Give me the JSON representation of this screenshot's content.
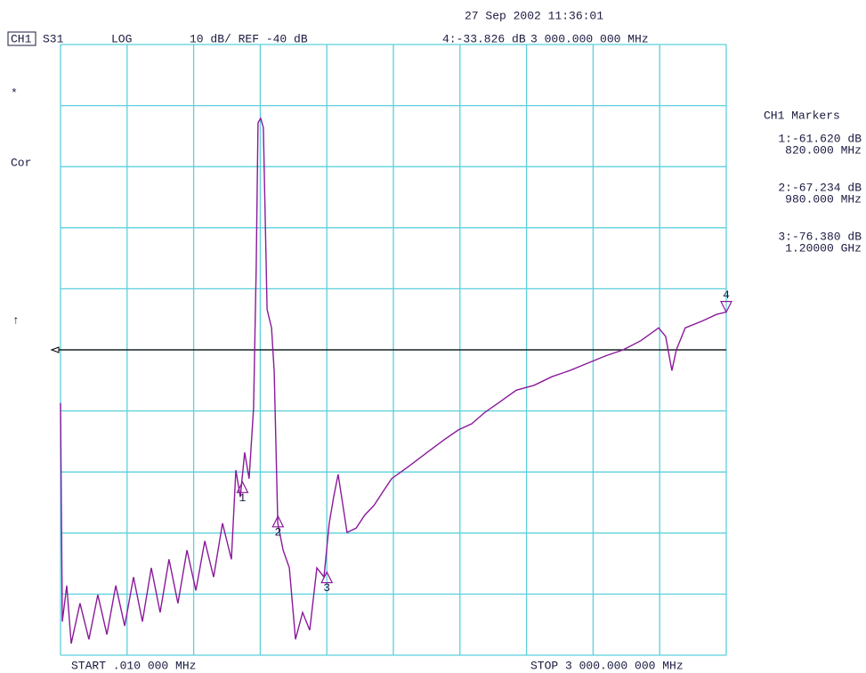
{
  "chart_data": {
    "type": "line",
    "timestamp": "27 Sep 2002  11:36:01",
    "channel": "CH1",
    "parameter": "S31",
    "format": "LOG",
    "scale_text": "10 dB/ REF -40 dB",
    "status_marks": [
      "*",
      "Cor",
      "↑"
    ],
    "markers_title": "CH1 Markers",
    "start_label": "START  .010 000 MHz",
    "stop_label": "STOP 3 000.000 000 MHz",
    "reference_level": -40,
    "grid": true,
    "grid_color": "#5cd0dc",
    "xlim": [
      0.01,
      3000
    ],
    "ylim": [
      -90,
      10
    ],
    "xticks": [
      0.01,
      300,
      600,
      900,
      1200,
      1500,
      1800,
      2100,
      2400,
      2700,
      3000
    ],
    "yticks": [
      -90,
      -80,
      -70,
      -60,
      -50,
      -40,
      -30,
      -20,
      -10,
      0,
      10
    ],
    "series": [
      {
        "color": "#8a1a9a",
        "x": [
          0.01,
          8,
          28,
          48,
          88,
          128,
          168,
          209,
          249,
          289,
          329,
          369,
          409,
          449,
          489,
          529,
          570,
          610,
          650,
          690,
          730,
          770,
          790,
          810,
          830,
          850,
          870,
          882,
          890,
          902,
          914,
          931,
          951,
          963,
          979,
          1003,
          1031,
          1059,
          1091,
          1123,
          1155,
          1187,
          1211,
          1231,
          1251,
          1271,
          1291,
          1332,
          1372,
          1412,
          1452,
          1492,
          1572,
          1652,
          1733,
          1793,
          1853,
          1913,
          1973,
          2054,
          2134,
          2214,
          2294,
          2374,
          2455,
          2535,
          2615,
          2695,
          2727,
          2755,
          2775,
          2815,
          2896,
          2956,
          3000
        ],
        "values": [
          -48.7,
          -84.5,
          -78.6,
          -88.1,
          -81.5,
          -87.4,
          -80.1,
          -86.6,
          -78.6,
          -85.2,
          -77.2,
          -84.5,
          -75.7,
          -83.0,
          -74.3,
          -81.5,
          -72.8,
          -79.4,
          -71.3,
          -77.2,
          -68.4,
          -74.3,
          -59.7,
          -64.1,
          -56.8,
          -61.1,
          -49.5,
          -26.2,
          -2.8,
          -2.1,
          -3.6,
          -33.4,
          -36.4,
          -43.6,
          -68.4,
          -72.8,
          -75.7,
          -87.4,
          -83.0,
          -85.9,
          -75.7,
          -77.2,
          -68.4,
          -64.1,
          -60.4,
          -65.1,
          -69.9,
          -69.2,
          -67.0,
          -65.5,
          -63.3,
          -61.1,
          -59.0,
          -56.8,
          -54.6,
          -53.1,
          -52.1,
          -50.2,
          -48.7,
          -46.6,
          -45.8,
          -44.4,
          -43.4,
          -42.2,
          -41.0,
          -40.0,
          -38.5,
          -36.4,
          -37.8,
          -43.4,
          -40.0,
          -36.4,
          -35.2,
          -34.2,
          -33.8
        ]
      }
    ],
    "markers": [
      {
        "label": "1",
        "x": 820,
        "y": -61.62,
        "readout": "1:-61.620 dB",
        "freq": "820.000 MHz"
      },
      {
        "label": "2",
        "x": 980,
        "y": -67.234,
        "readout": "2:-67.234 dB",
        "freq": "980.000 MHz"
      },
      {
        "label": "3",
        "x": 1200,
        "y": -76.38,
        "readout": "3:-76.380 dB",
        "freq": "1.20000 GHz"
      },
      {
        "label": "4",
        "x": 3000,
        "y": -33.826,
        "readout": "4:-33.826 dB",
        "freq": "3 000.000 000 MHz"
      }
    ]
  }
}
